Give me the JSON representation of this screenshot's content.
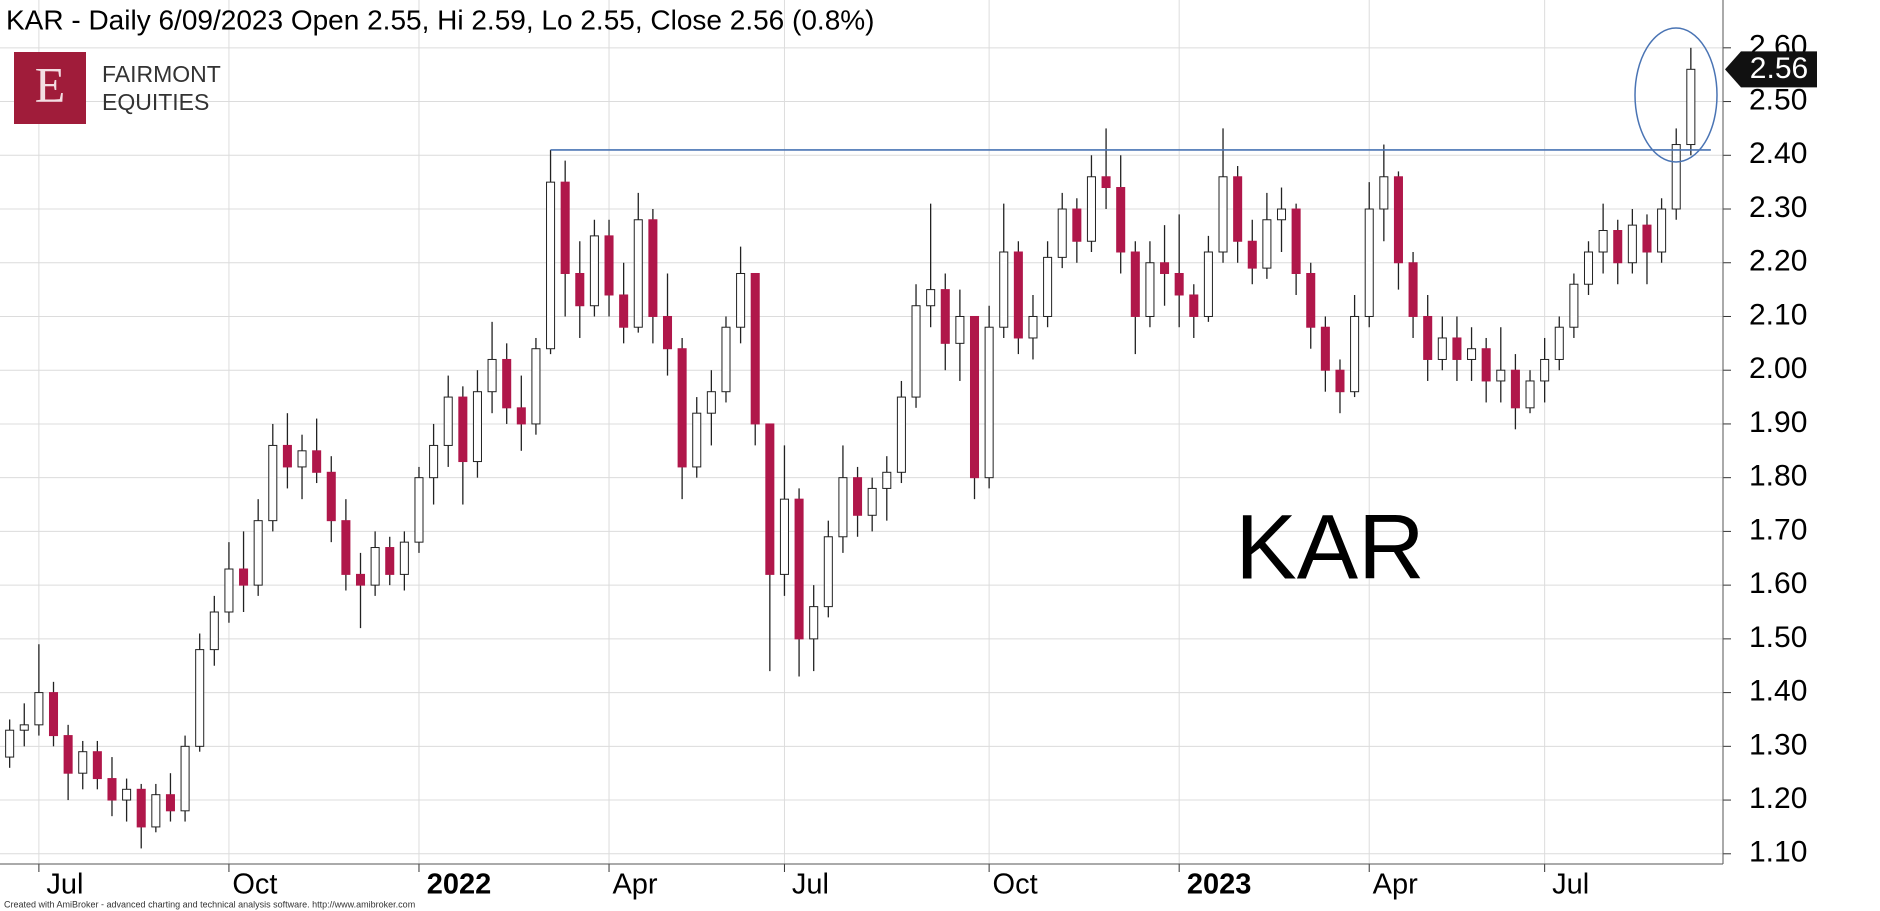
{
  "chart_data": {
    "type": "candlestick",
    "title": "KAR - Daily 6/09/2023 Open 2.55, Hi 2.59, Lo 2.55, Close 2.56 (0.8%)",
    "logo": {
      "mark": "E",
      "line1": "FAIRMONT",
      "line2": "EQUITIES"
    },
    "annotation": "KAR",
    "footer": "Created with AmiBroker - advanced charting and technical analysis software. http://www.amibroker.com",
    "up_color": "#ffffff",
    "down_color": "#b0174a",
    "line_color": "#4a74b4",
    "grid": true,
    "resistance": 2.41,
    "ylim": [
      1.081,
      2.689
    ],
    "yticks": [
      {
        "value": 1.1,
        "label": "1.10"
      },
      {
        "value": 1.2,
        "label": "1.20"
      },
      {
        "value": 1.3,
        "label": "1.30"
      },
      {
        "value": 1.4,
        "label": "1.40"
      },
      {
        "value": 1.5,
        "label": "1.50"
      },
      {
        "value": 1.6,
        "label": "1.60"
      },
      {
        "value": 1.7,
        "label": "1.70"
      },
      {
        "value": 1.8,
        "label": "1.80"
      },
      {
        "value": 1.9,
        "label": "1.90"
      },
      {
        "value": 2.0,
        "label": "2.00"
      },
      {
        "value": 2.1,
        "label": "2.10"
      },
      {
        "value": 2.2,
        "label": "2.20"
      },
      {
        "value": 2.3,
        "label": "2.30"
      },
      {
        "value": 2.4,
        "label": "2.40"
      },
      {
        "value": 2.5,
        "label": "2.50"
      },
      {
        "value": 2.6,
        "label": "2.60"
      }
    ],
    "xlim": [
      -0.66,
      117.2
    ],
    "xticks": [
      {
        "value": 2,
        "label": "Jul"
      },
      {
        "value": 15,
        "label": "Oct"
      },
      {
        "value": 28,
        "label": "2022"
      },
      {
        "value": 41,
        "label": "Apr"
      },
      {
        "value": 53,
        "label": "Jul"
      },
      {
        "value": 67,
        "label": "Oct"
      },
      {
        "value": 80,
        "label": "2023"
      },
      {
        "value": 93,
        "label": "Apr"
      },
      {
        "value": 105,
        "label": "Jul"
      }
    ],
    "ohlc": [
      [
        1.28,
        1.35,
        1.26,
        1.33
      ],
      [
        1.33,
        1.38,
        1.3,
        1.34
      ],
      [
        1.34,
        1.49,
        1.32,
        1.4
      ],
      [
        1.4,
        1.42,
        1.3,
        1.32
      ],
      [
        1.32,
        1.34,
        1.2,
        1.25
      ],
      [
        1.25,
        1.31,
        1.22,
        1.29
      ],
      [
        1.29,
        1.31,
        1.22,
        1.24
      ],
      [
        1.24,
        1.28,
        1.17,
        1.2
      ],
      [
        1.2,
        1.24,
        1.16,
        1.22
      ],
      [
        1.22,
        1.23,
        1.11,
        1.15
      ],
      [
        1.15,
        1.23,
        1.14,
        1.21
      ],
      [
        1.21,
        1.25,
        1.16,
        1.18
      ],
      [
        1.18,
        1.32,
        1.16,
        1.3
      ],
      [
        1.3,
        1.51,
        1.29,
        1.48
      ],
      [
        1.48,
        1.58,
        1.45,
        1.55
      ],
      [
        1.55,
        1.68,
        1.53,
        1.63
      ],
      [
        1.63,
        1.7,
        1.55,
        1.6
      ],
      [
        1.6,
        1.76,
        1.58,
        1.72
      ],
      [
        1.72,
        1.9,
        1.7,
        1.86
      ],
      [
        1.86,
        1.92,
        1.78,
        1.82
      ],
      [
        1.82,
        1.88,
        1.76,
        1.85
      ],
      [
        1.85,
        1.91,
        1.79,
        1.81
      ],
      [
        1.81,
        1.84,
        1.68,
        1.72
      ],
      [
        1.72,
        1.76,
        1.59,
        1.62
      ],
      [
        1.62,
        1.66,
        1.52,
        1.6
      ],
      [
        1.6,
        1.7,
        1.58,
        1.67
      ],
      [
        1.67,
        1.69,
        1.6,
        1.62
      ],
      [
        1.62,
        1.7,
        1.59,
        1.68
      ],
      [
        1.68,
        1.82,
        1.66,
        1.8
      ],
      [
        1.8,
        1.9,
        1.75,
        1.86
      ],
      [
        1.86,
        1.99,
        1.82,
        1.95
      ],
      [
        1.95,
        1.97,
        1.75,
        1.83
      ],
      [
        1.83,
        2.0,
        1.8,
        1.96
      ],
      [
        1.96,
        2.09,
        1.92,
        2.02
      ],
      [
        2.02,
        2.05,
        1.9,
        1.93
      ],
      [
        1.93,
        1.99,
        1.85,
        1.9
      ],
      [
        1.9,
        2.06,
        1.88,
        2.04
      ],
      [
        2.04,
        2.41,
        2.03,
        2.35
      ],
      [
        2.35,
        2.39,
        2.1,
        2.18
      ],
      [
        2.18,
        2.24,
        2.06,
        2.12
      ],
      [
        2.12,
        2.28,
        2.1,
        2.25
      ],
      [
        2.25,
        2.28,
        2.1,
        2.14
      ],
      [
        2.14,
        2.2,
        2.05,
        2.08
      ],
      [
        2.08,
        2.33,
        2.07,
        2.28
      ],
      [
        2.28,
        2.3,
        2.05,
        2.1
      ],
      [
        2.1,
        2.18,
        1.99,
        2.04
      ],
      [
        2.04,
        2.06,
        1.76,
        1.82
      ],
      [
        1.82,
        1.95,
        1.8,
        1.92
      ],
      [
        1.92,
        2.0,
        1.86,
        1.96
      ],
      [
        1.96,
        2.1,
        1.94,
        2.08
      ],
      [
        2.08,
        2.23,
        2.05,
        2.18
      ],
      [
        2.18,
        2.18,
        1.86,
        1.9
      ],
      [
        1.9,
        1.9,
        1.44,
        1.62
      ],
      [
        1.62,
        1.86,
        1.58,
        1.76
      ],
      [
        1.76,
        1.78,
        1.43,
        1.5
      ],
      [
        1.5,
        1.6,
        1.44,
        1.56
      ],
      [
        1.56,
        1.72,
        1.54,
        1.69
      ],
      [
        1.69,
        1.86,
        1.66,
        1.8
      ],
      [
        1.8,
        1.82,
        1.69,
        1.73
      ],
      [
        1.73,
        1.8,
        1.7,
        1.78
      ],
      [
        1.78,
        1.84,
        1.72,
        1.81
      ],
      [
        1.81,
        1.98,
        1.79,
        1.95
      ],
      [
        1.95,
        2.16,
        1.93,
        2.12
      ],
      [
        2.12,
        2.31,
        2.08,
        2.15
      ],
      [
        2.15,
        2.18,
        2.0,
        2.05
      ],
      [
        2.05,
        2.15,
        1.98,
        2.1
      ],
      [
        2.1,
        2.1,
        1.76,
        1.8
      ],
      [
        1.8,
        2.12,
        1.78,
        2.08
      ],
      [
        2.08,
        2.31,
        2.06,
        2.22
      ],
      [
        2.22,
        2.24,
        2.03,
        2.06
      ],
      [
        2.06,
        2.14,
        2.02,
        2.1
      ],
      [
        2.1,
        2.24,
        2.08,
        2.21
      ],
      [
        2.21,
        2.33,
        2.19,
        2.3
      ],
      [
        2.3,
        2.32,
        2.2,
        2.24
      ],
      [
        2.24,
        2.4,
        2.22,
        2.36
      ],
      [
        2.36,
        2.45,
        2.3,
        2.34
      ],
      [
        2.34,
        2.4,
        2.18,
        2.22
      ],
      [
        2.22,
        2.24,
        2.03,
        2.1
      ],
      [
        2.1,
        2.24,
        2.08,
        2.2
      ],
      [
        2.2,
        2.27,
        2.12,
        2.18
      ],
      [
        2.18,
        2.29,
        2.08,
        2.14
      ],
      [
        2.14,
        2.16,
        2.06,
        2.1
      ],
      [
        2.1,
        2.25,
        2.09,
        2.22
      ],
      [
        2.22,
        2.45,
        2.2,
        2.36
      ],
      [
        2.36,
        2.38,
        2.2,
        2.24
      ],
      [
        2.24,
        2.28,
        2.16,
        2.19
      ],
      [
        2.19,
        2.33,
        2.17,
        2.28
      ],
      [
        2.28,
        2.34,
        2.22,
        2.3
      ],
      [
        2.3,
        2.31,
        2.14,
        2.18
      ],
      [
        2.18,
        2.2,
        2.04,
        2.08
      ],
      [
        2.08,
        2.1,
        1.96,
        2.0
      ],
      [
        2.0,
        2.02,
        1.92,
        1.96
      ],
      [
        1.96,
        2.14,
        1.95,
        2.1
      ],
      [
        2.1,
        2.35,
        2.08,
        2.3
      ],
      [
        2.3,
        2.42,
        2.24,
        2.36
      ],
      [
        2.36,
        2.37,
        2.15,
        2.2
      ],
      [
        2.2,
        2.22,
        2.06,
        2.1
      ],
      [
        2.1,
        2.14,
        1.98,
        2.02
      ],
      [
        2.02,
        2.1,
        2.0,
        2.06
      ],
      [
        2.06,
        2.1,
        1.98,
        2.02
      ],
      [
        2.02,
        2.08,
        1.98,
        2.04
      ],
      [
        2.04,
        2.06,
        1.94,
        1.98
      ],
      [
        1.98,
        2.08,
        1.94,
        2.0
      ],
      [
        2.0,
        2.03,
        1.89,
        1.93
      ],
      [
        1.93,
        2.0,
        1.92,
        1.98
      ],
      [
        1.98,
        2.06,
        1.94,
        2.02
      ],
      [
        2.02,
        2.1,
        2.0,
        2.08
      ],
      [
        2.08,
        2.18,
        2.06,
        2.16
      ],
      [
        2.16,
        2.24,
        2.14,
        2.22
      ],
      [
        2.22,
        2.31,
        2.18,
        2.26
      ],
      [
        2.26,
        2.28,
        2.16,
        2.2
      ],
      [
        2.2,
        2.3,
        2.18,
        2.27
      ],
      [
        2.27,
        2.29,
        2.16,
        2.22
      ],
      [
        2.22,
        2.32,
        2.2,
        2.3
      ],
      [
        2.3,
        2.45,
        2.28,
        2.42
      ],
      [
        2.42,
        2.6,
        2.4,
        2.56
      ]
    ]
  }
}
